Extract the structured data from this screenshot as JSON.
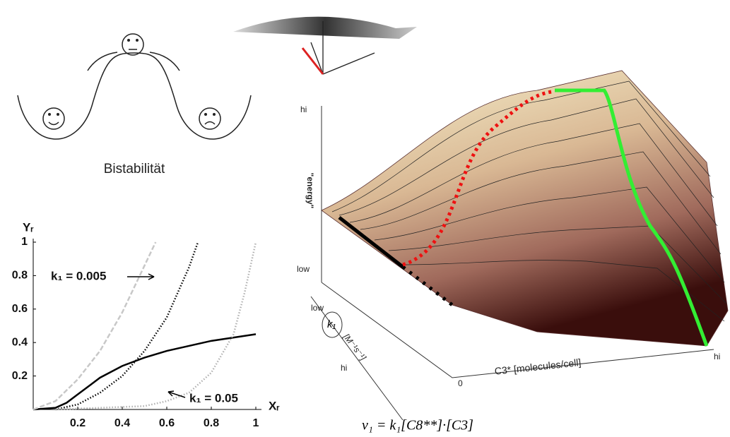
{
  "chart_data": {
    "type": "line",
    "x_label": "Xᵣ",
    "y_label": "Yᵣ",
    "xlim": [
      0,
      1
    ],
    "ylim": [
      0,
      1
    ],
    "xticks": [
      0.2,
      0.4,
      0.6,
      0.8,
      1
    ],
    "yticks": [
      0.2,
      0.4,
      0.6,
      0.8,
      1
    ],
    "annotations": [
      "k₁ = 0.005",
      "k₁ = 0.05"
    ],
    "series": [
      {
        "color": "#000000",
        "style": "solid",
        "x": [
          0,
          0.1,
          0.15,
          0.2,
          0.3,
          0.4,
          0.5,
          0.6,
          0.7,
          0.8,
          0.9,
          1
        ],
        "values": [
          0,
          0.01,
          0.04,
          0.09,
          0.19,
          0.26,
          0.31,
          0.35,
          0.38,
          0.41,
          0.43,
          0.45
        ]
      },
      {
        "color": "#000000",
        "style": "dotted",
        "x": [
          0.1,
          0.2,
          0.3,
          0.4,
          0.5,
          0.6,
          0.65,
          0.7,
          0.74
        ],
        "values": [
          0,
          0.03,
          0.1,
          0.2,
          0.35,
          0.55,
          0.7,
          0.85,
          1
        ]
      },
      {
        "color": "#c8c8c8",
        "style": "dashed",
        "x": [
          0,
          0.1,
          0.2,
          0.3,
          0.4,
          0.5,
          0.55
        ],
        "values": [
          0,
          0.05,
          0.18,
          0.35,
          0.58,
          0.86,
          1
        ]
      },
      {
        "color": "#b0b0b0",
        "style": "dotted",
        "x": [
          0.1,
          0.3,
          0.5,
          0.6,
          0.7,
          0.8,
          0.9,
          0.95,
          1
        ],
        "values": [
          0,
          0.01,
          0.02,
          0.05,
          0.1,
          0.22,
          0.45,
          0.7,
          1
        ]
      }
    ]
  },
  "diagram": {
    "bistability_label": "Bistabilität",
    "energy_axis": {
      "label": "\"energy\"",
      "hi": "hi",
      "low": "low"
    },
    "k1_axis": {
      "symbol": "k₁",
      "unit": "[M⁻¹s⁻¹]",
      "low": "low",
      "hi": "hi"
    },
    "c3_axis": {
      "label": "C3* [molecules/cell]",
      "zero": "0",
      "hi": "hi"
    },
    "equation": "v₁ = k₁[C8**]·[C3]"
  }
}
